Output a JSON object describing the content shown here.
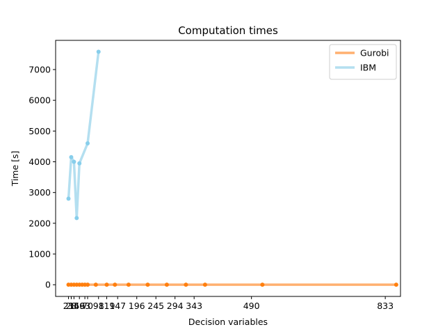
{
  "chart_data": {
    "type": "line",
    "title": "Computation times",
    "xlabel": "Decision variables",
    "ylabel": "Time [s]",
    "xlim": [
      -12,
      872
    ],
    "ylim": [
      -380,
      7950
    ],
    "grid": false,
    "legend_position": "top-right",
    "xticks": [
      {
        "value": 21,
        "label": "21"
      },
      {
        "value": 28,
        "label": "28"
      },
      {
        "value": 35,
        "label": "35"
      },
      {
        "value": 49,
        "label": "49"
      },
      {
        "value": 63,
        "label": "63"
      },
      {
        "value": 70,
        "label": "70"
      },
      {
        "value": 98,
        "label": "98"
      },
      {
        "value": 119,
        "label": "119"
      },
      {
        "value": 147,
        "label": "147"
      },
      {
        "value": 196,
        "label": "196"
      },
      {
        "value": 245,
        "label": "245"
      },
      {
        "value": 294,
        "label": "294"
      },
      {
        "value": 343,
        "label": "343"
      },
      {
        "value": 490,
        "label": "490"
      },
      {
        "value": 833,
        "label": "833"
      }
    ],
    "yticks": [
      0,
      1000,
      2000,
      3000,
      4000,
      5000,
      6000,
      7000
    ],
    "series": [
      {
        "name": "Gurobi",
        "color": "#ff7f0e",
        "line_color": "#ffb070",
        "x": [
          21,
          28,
          35,
          42,
          49,
          56,
          63,
          70,
          91,
          119,
          140,
          175,
          224,
          273,
          322,
          371,
          518,
          861
        ],
        "y": [
          2,
          2,
          2,
          2,
          2,
          2,
          2,
          2,
          2,
          2,
          2,
          2,
          2,
          2,
          2,
          2,
          2,
          2
        ]
      },
      {
        "name": "IBM",
        "color": "#87ceeb",
        "line_color": "#b4dff0",
        "x": [
          21,
          28,
          35,
          42,
          49,
          70,
          98
        ],
        "y": [
          2800,
          4150,
          4000,
          2170,
          3950,
          4600,
          7580
        ]
      }
    ]
  }
}
